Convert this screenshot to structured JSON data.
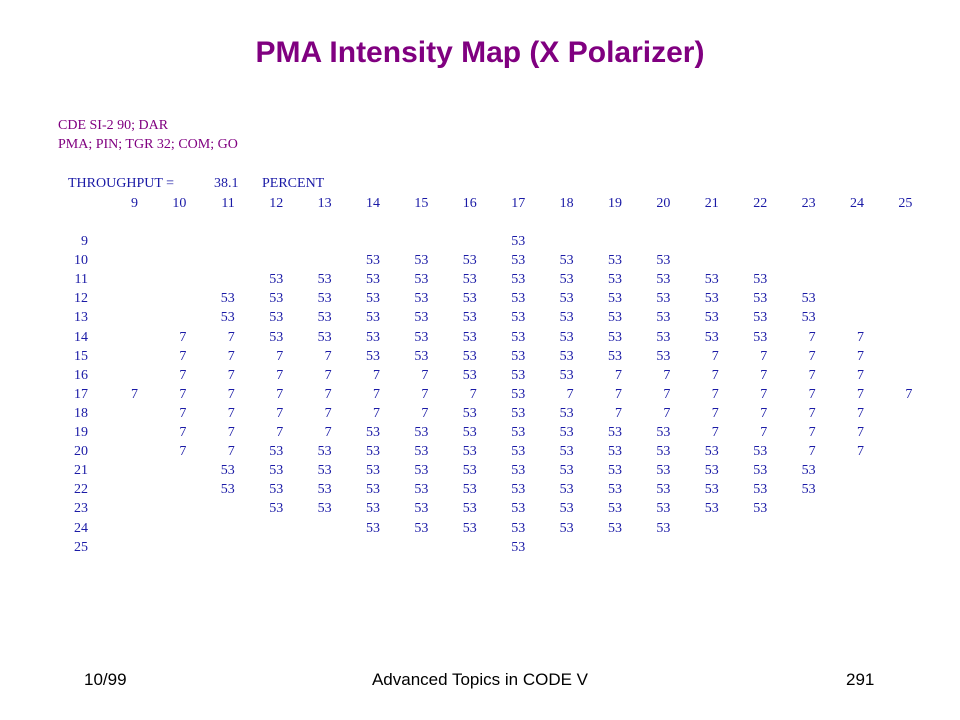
{
  "title": "PMA Intensity Map (X Polarizer)",
  "commands": [
    "CDE SI-2 90; DAR",
    "PMA; PIN; TGR 32; COM; GO"
  ],
  "throughput": {
    "label": "THROUGHPUT =",
    "value": "38.1",
    "unit": "PERCENT"
  },
  "columns": [
    "9",
    "10",
    "11",
    "12",
    "13",
    "14",
    "15",
    "16",
    "17",
    "18",
    "19",
    "20",
    "21",
    "22",
    "23",
    "24",
    "25"
  ],
  "rows": [
    {
      "label": "9",
      "values": [
        "",
        "",
        "",
        "",
        "",
        "",
        "",
        "",
        "53",
        "",
        "",
        "",
        "",
        "",
        "",
        "",
        ""
      ]
    },
    {
      "label": "10",
      "values": [
        "",
        "",
        "",
        "",
        "",
        "53",
        "53",
        "53",
        "53",
        "53",
        "53",
        "53",
        "",
        "",
        "",
        "",
        ""
      ]
    },
    {
      "label": "11",
      "values": [
        "",
        "",
        "",
        "53",
        "53",
        "53",
        "53",
        "53",
        "53",
        "53",
        "53",
        "53",
        "53",
        "53",
        "",
        "",
        ""
      ]
    },
    {
      "label": "12",
      "values": [
        "",
        "",
        "53",
        "53",
        "53",
        "53",
        "53",
        "53",
        "53",
        "53",
        "53",
        "53",
        "53",
        "53",
        "53",
        "",
        ""
      ]
    },
    {
      "label": "13",
      "values": [
        "",
        "",
        "53",
        "53",
        "53",
        "53",
        "53",
        "53",
        "53",
        "53",
        "53",
        "53",
        "53",
        "53",
        "53",
        "",
        ""
      ]
    },
    {
      "label": "14",
      "values": [
        "",
        "7",
        "7",
        "53",
        "53",
        "53",
        "53",
        "53",
        "53",
        "53",
        "53",
        "53",
        "53",
        "53",
        "7",
        "7",
        ""
      ]
    },
    {
      "label": "15",
      "values": [
        "",
        "7",
        "7",
        "7",
        "7",
        "53",
        "53",
        "53",
        "53",
        "53",
        "53",
        "53",
        "7",
        "7",
        "7",
        "7",
        ""
      ]
    },
    {
      "label": "16",
      "values": [
        "",
        "7",
        "7",
        "7",
        "7",
        "7",
        "7",
        "53",
        "53",
        "53",
        "7",
        "7",
        "7",
        "7",
        "7",
        "7",
        ""
      ]
    },
    {
      "label": "17",
      "values": [
        "7",
        "7",
        "7",
        "7",
        "7",
        "7",
        "7",
        "7",
        "53",
        "7",
        "7",
        "7",
        "7",
        "7",
        "7",
        "7",
        "7"
      ]
    },
    {
      "label": "18",
      "values": [
        "",
        "7",
        "7",
        "7",
        "7",
        "7",
        "7",
        "53",
        "53",
        "53",
        "7",
        "7",
        "7",
        "7",
        "7",
        "7",
        ""
      ]
    },
    {
      "label": "19",
      "values": [
        "",
        "7",
        "7",
        "7",
        "7",
        "53",
        "53",
        "53",
        "53",
        "53",
        "53",
        "53",
        "7",
        "7",
        "7",
        "7",
        ""
      ]
    },
    {
      "label": "20",
      "values": [
        "",
        "7",
        "7",
        "53",
        "53",
        "53",
        "53",
        "53",
        "53",
        "53",
        "53",
        "53",
        "53",
        "53",
        "7",
        "7",
        ""
      ]
    },
    {
      "label": "21",
      "values": [
        "",
        "",
        "53",
        "53",
        "53",
        "53",
        "53",
        "53",
        "53",
        "53",
        "53",
        "53",
        "53",
        "53",
        "53",
        "",
        ""
      ]
    },
    {
      "label": "22",
      "values": [
        "",
        "",
        "53",
        "53",
        "53",
        "53",
        "53",
        "53",
        "53",
        "53",
        "53",
        "53",
        "53",
        "53",
        "53",
        "",
        ""
      ]
    },
    {
      "label": "23",
      "values": [
        "",
        "",
        "",
        "53",
        "53",
        "53",
        "53",
        "53",
        "53",
        "53",
        "53",
        "53",
        "53",
        "53",
        "",
        "",
        ""
      ]
    },
    {
      "label": "24",
      "values": [
        "",
        "",
        "",
        "",
        "",
        "53",
        "53",
        "53",
        "53",
        "53",
        "53",
        "53",
        "",
        "",
        "",
        "",
        ""
      ]
    },
    {
      "label": "25",
      "values": [
        "",
        "",
        "",
        "",
        "",
        "",
        "",
        "",
        "53",
        "",
        "",
        "",
        "",
        "",
        "",
        "",
        ""
      ]
    }
  ],
  "footer": {
    "left": "10/99",
    "center": "Advanced Topics in CODE V",
    "right": "291"
  }
}
